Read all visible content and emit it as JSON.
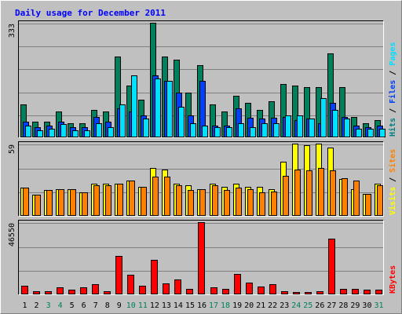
{
  "chart_data": {
    "type": "bar",
    "title": "Daily usage for December 2011",
    "categories": [
      "1",
      "2",
      "3",
      "4",
      "5",
      "6",
      "7",
      "8",
      "9",
      "10",
      "11",
      "12",
      "13",
      "14",
      "15",
      "16",
      "17",
      "18",
      "19",
      "20",
      "21",
      "22",
      "23",
      "24",
      "25",
      "26",
      "27",
      "28",
      "29",
      "30",
      "31"
    ],
    "weekend_days": [
      "3",
      "4",
      "10",
      "11",
      "17",
      "18",
      "24",
      "25",
      "31"
    ],
    "panels": [
      {
        "id": "traffic",
        "max_label": "333",
        "ymax": 333,
        "ylabel_parts": [
          {
            "text": "Pages",
            "color": "#00e0ff"
          },
          {
            "text": " / ",
            "color": "#000000"
          },
          {
            "text": "Files",
            "color": "#0040ff"
          },
          {
            "text": " / ",
            "color": "#000000"
          },
          {
            "text": "Hits",
            "color": "#008080"
          }
        ],
        "series": [
          {
            "name": "Hits",
            "color": "#00805c",
            "values": [
              95,
              45,
              45,
              75,
              40,
              40,
              80,
              75,
              235,
              150,
              110,
              333,
              235,
              225,
              130,
              210,
              95,
              75,
              120,
              100,
              80,
              105,
              155,
              150,
              145,
              145,
              245,
              145,
              60,
              40,
              50
            ]
          },
          {
            "name": "Files",
            "color": "#0040ff",
            "values": [
              45,
              30,
              35,
              45,
              30,
              30,
              60,
              45,
              85,
              75,
              65,
              180,
              165,
              130,
              65,
              165,
              35,
              35,
              85,
              58,
              55,
              58,
              60,
              50,
              55,
              40,
              100,
              60,
              35,
              30,
              35
            ]
          },
          {
            "name": "Pages",
            "color": "#00e0ff",
            "values": [
              35,
              20,
              25,
              38,
              20,
              20,
              40,
              30,
              95,
              180,
              55,
              170,
              165,
              90,
              40,
              35,
              30,
              30,
              40,
              30,
              40,
              40,
              65,
              65,
              55,
              115,
              80,
              55,
              25,
              25,
              25
            ]
          }
        ]
      },
      {
        "id": "visitors",
        "max_label": "59",
        "ymax": 59,
        "ylabel_parts": [
          {
            "text": "Sites",
            "color": "#ff8000"
          },
          {
            "text": " / ",
            "color": "#000000"
          },
          {
            "text": "Visits",
            "color": "#ffff00"
          }
        ],
        "series": [
          {
            "name": "Visits",
            "color": "#ffff00",
            "values": [
              23,
              17,
              21,
              22,
              22,
              19,
              26,
              26,
              26,
              29,
              24,
              39,
              38,
              26,
              25,
              22,
              26,
              24,
              26,
              24,
              24,
              22,
              44,
              59,
              58,
              59,
              56,
              30,
              22,
              18,
              26
            ]
          },
          {
            "name": "Sites",
            "color": "#ff8000",
            "values": [
              23,
              17,
              21,
              22,
              22,
              19,
              25,
              25,
              26,
              29,
              24,
              32,
              32,
              25,
              21,
              22,
              25,
              21,
              23,
              22,
              19,
              20,
              33,
              38,
              37,
              39,
              37,
              31,
              29,
              18,
              25
            ]
          }
        ]
      },
      {
        "id": "kbytes",
        "max_label": "46550",
        "ymax": 46550,
        "ylabel_parts": [
          {
            "text": "KBytes",
            "color": "#ff0000"
          }
        ],
        "series": [
          {
            "name": "KBytes",
            "color": "#ff0000",
            "values": [
              5500,
              2000,
              2000,
              4500,
              3000,
              4500,
              6500,
              2000,
              25000,
              12500,
              5500,
              22500,
              7000,
              9500,
              3500,
              46550,
              4500,
              3500,
              13000,
              7500,
              5000,
              6500,
              2000,
              1500,
              1500,
              2000,
              36000,
              3500,
              3500,
              3000,
              3000
            ]
          }
        ]
      }
    ],
    "grid": true,
    "colors": {
      "background": "#c0c0c0",
      "frame_light": "#ffffff",
      "frame_dark": "#808080",
      "title": "#0000ff",
      "weekday_label": "#000000",
      "weekend_label": "#00805c"
    }
  }
}
